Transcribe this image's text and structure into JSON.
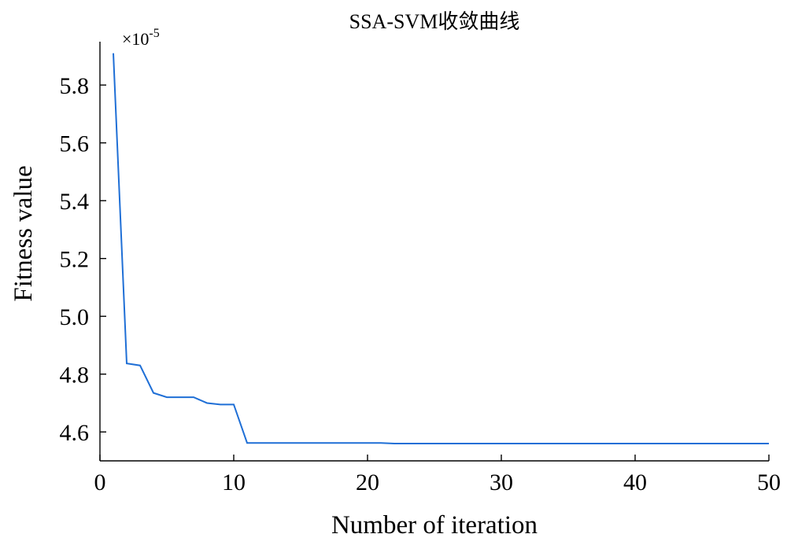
{
  "chart_data": {
    "type": "line",
    "title": "SSA-SVM收敛曲线",
    "xlabel": "Number of iteration",
    "ylabel": "Fitness value",
    "y_multiplier": "×10",
    "y_multiplier_exponent": "-5",
    "xlim": [
      0,
      50
    ],
    "ylim": [
      4.5,
      5.95
    ],
    "xticks": [
      0,
      10,
      20,
      30,
      40,
      50
    ],
    "yticks": [
      4.6,
      4.8,
      5.0,
      5.2,
      5.4,
      5.6,
      5.8
    ],
    "ytick_labels": [
      "4.6",
      "4.8",
      "5.0",
      "5.2",
      "5.4",
      "5.6",
      "5.8"
    ],
    "grid": false,
    "line_color": "#1f6fd6",
    "series": [
      {
        "x": [
          1,
          2,
          3,
          4,
          5,
          6,
          7,
          8,
          9,
          10,
          11,
          12,
          13,
          14,
          15,
          16,
          17,
          18,
          19,
          20,
          21,
          22,
          23,
          24,
          25,
          26,
          27,
          28,
          29,
          30,
          31,
          32,
          33,
          34,
          35,
          36,
          37,
          38,
          39,
          40,
          41,
          42,
          43,
          44,
          45,
          46,
          47,
          48,
          49,
          50
        ],
        "y": [
          5.91,
          4.837,
          4.83,
          4.735,
          4.72,
          4.72,
          4.72,
          4.7,
          4.695,
          4.695,
          4.562,
          4.562,
          4.562,
          4.562,
          4.562,
          4.562,
          4.562,
          4.562,
          4.562,
          4.562,
          4.562,
          4.56,
          4.56,
          4.56,
          4.56,
          4.56,
          4.56,
          4.56,
          4.56,
          4.56,
          4.56,
          4.56,
          4.56,
          4.56,
          4.56,
          4.56,
          4.56,
          4.56,
          4.56,
          4.56,
          4.56,
          4.56,
          4.56,
          4.56,
          4.56,
          4.56,
          4.56,
          4.56,
          4.56,
          4.56
        ]
      }
    ]
  }
}
